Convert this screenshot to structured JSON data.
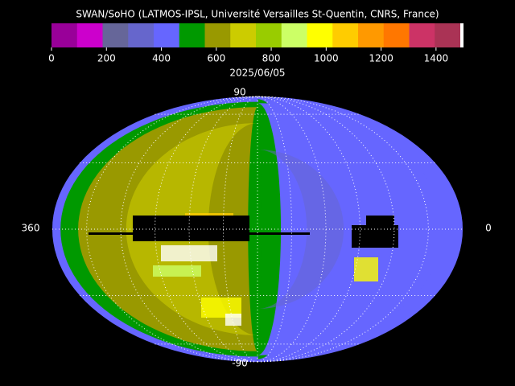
{
  "title": "SWAN/SoHO (LATMOS-IPSL, Université Versailles St-Quentin, CNRS, France)",
  "date": "2025/06/05",
  "colorbar": {
    "range": [
      0,
      1500
    ],
    "ticks": [
      0,
      200,
      400,
      600,
      800,
      1000,
      1200,
      1400
    ],
    "colors": [
      "#990099",
      "#cc00cc",
      "#666699",
      "#6666cc",
      "#6666ff",
      "#009900",
      "#999900",
      "#cccc00",
      "#99cc00",
      "#ccff66",
      "#ffff00",
      "#ffcc00",
      "#ff9900",
      "#ff7700",
      "#cc3366",
      "#aa3355"
    ]
  },
  "map": {
    "top_label": "90",
    "bottom_label": "-90",
    "left_label": "360",
    "right_label": "0"
  }
}
